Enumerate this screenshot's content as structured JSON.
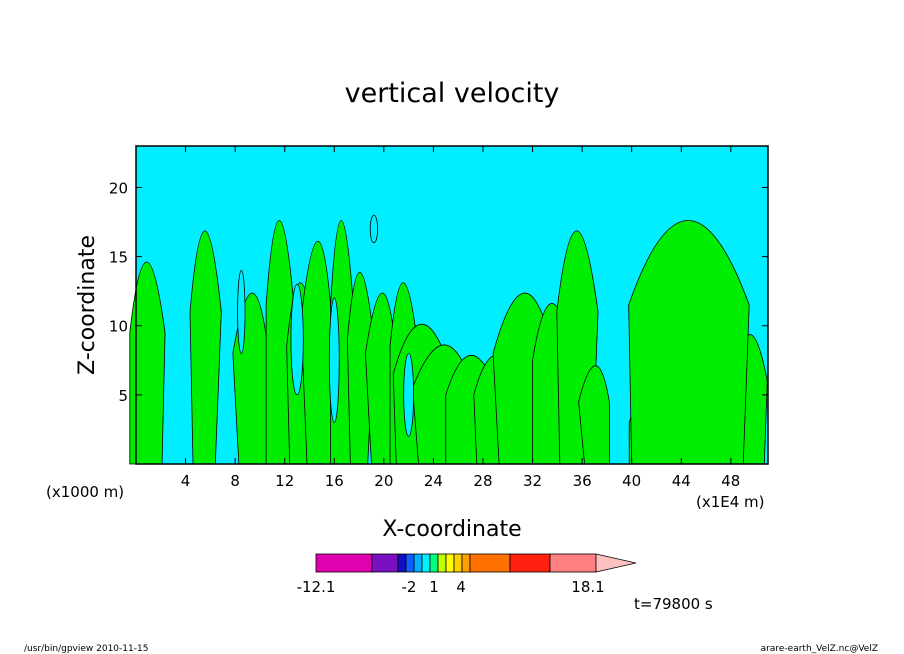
{
  "chart_data": {
    "type": "heatmap",
    "title": "vertical velocity",
    "xlabel": "X-coordinate",
    "ylabel": "Z-coordinate",
    "x_unit_label": "(x1000 m)",
    "x_unit_label_right": "(x1E4 m)",
    "xlim": [
      0,
      51
    ],
    "ylim": [
      0,
      23
    ],
    "x_ticks": [
      4,
      8,
      12,
      16,
      20,
      24,
      28,
      32,
      36,
      40,
      44,
      48
    ],
    "y_ticks": [
      5,
      10,
      15,
      20
    ],
    "colorbar": {
      "min_label": "-12.1",
      "labels": [
        "-2",
        "1",
        "4"
      ],
      "max_label": "18.1",
      "colors": [
        "#e000b0",
        "#7a10c0",
        "#1010c0",
        "#1060ff",
        "#00b0ff",
        "#00f0ff",
        "#00ff80",
        "#c0ff00",
        "#ffff00",
        "#ffd000",
        "#ffa000",
        "#ff7000",
        "#ff2010",
        "#ff8080",
        "#ffc0c0"
      ]
    },
    "fill_colors": {
      "negative": "#00eeff",
      "positive": "#00ee00"
    },
    "time_label": "t=79800 s"
  },
  "footer": {
    "left": "/usr/bin/gpview   2010-11-15",
    "right": "arare-earth_VelZ.nc@VelZ"
  }
}
